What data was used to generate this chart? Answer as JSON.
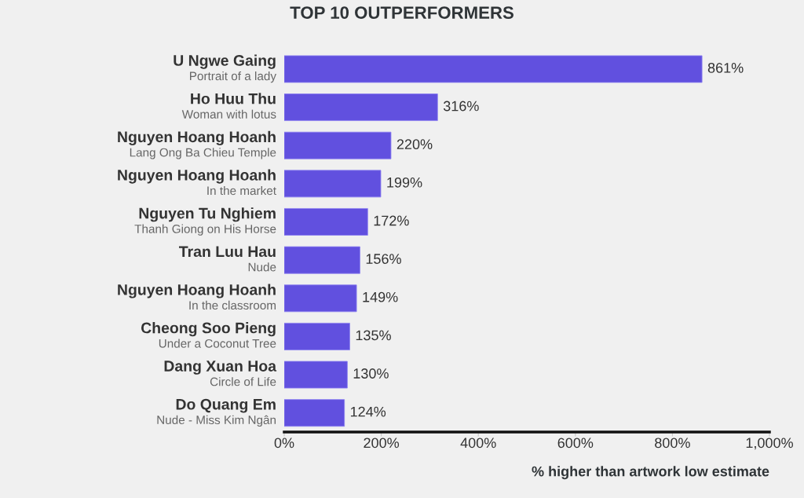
{
  "chart_data": {
    "type": "bar",
    "orientation": "horizontal",
    "title": "TOP 10 OUTPERFORMERS",
    "xlabel": "% higher than artwork low estimate",
    "categories": [
      "U Ngwe Gaing\nPortrait of a lady",
      "Ho Huu Thu\nWoman with lotus",
      "Nguyen Hoang Hoanh\nLang Ong Ba Chieu Temple",
      "Nguyen Hoang Hoanh\nIn the market",
      "Nguyen Tu Nghiem\nThanh Giong on His Horse",
      "Tran Luu Hau\nNude",
      "Nguyen Hoang Hoanh\nIn the classroom",
      "Cheong Soo Pieng\nUnder a Coconut Tree",
      "Dang Xuan Hoa\nCircle of Life",
      "Do Quang Em\nNude - Miss Kim Ngân"
    ],
    "values": [
      861,
      316,
      220,
      199,
      172,
      156,
      149,
      135,
      130,
      124
    ],
    "value_labels": [
      "861%",
      "316%",
      "220%",
      "199%",
      "172%",
      "156%",
      "149%",
      "135%",
      "130%",
      "124%"
    ],
    "color": "#6150df",
    "xlim": [
      0,
      1000
    ],
    "xticks": [
      {
        "value": 0,
        "label": "0%"
      },
      {
        "value": 200,
        "label": "200%"
      },
      {
        "value": 400,
        "label": "400%"
      },
      {
        "value": 600,
        "label": "600%"
      },
      {
        "value": 800,
        "label": "800%"
      },
      {
        "value": 1000,
        "label": "1,000%"
      }
    ]
  }
}
